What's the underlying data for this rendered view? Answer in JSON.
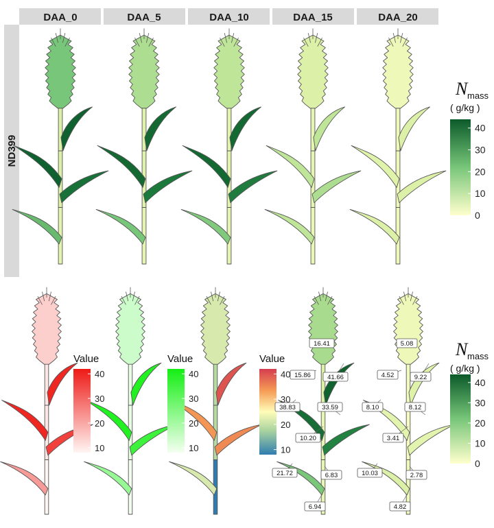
{
  "panels": [
    "DAA_0",
    "DAA_5",
    "DAA_10",
    "DAA_15",
    "DAA_20"
  ],
  "genotype": "ND399",
  "colors": {
    "n_low": "#ffffcc",
    "n_high": "#0b5a2a",
    "red_low": "#fff5f3",
    "red_high": "#ee1a16",
    "green_low": "#f4fff0",
    "green_high": "#14ef14",
    "spec_stops": [
      "#2f7db0",
      "#a9d39f",
      "#fffdb8",
      "#f59a55",
      "#d53e4f"
    ]
  },
  "legends": {
    "n_mass": {
      "title": "N",
      "subscript": "mass",
      "unit": "( g/kg )",
      "ticks": [
        0,
        10,
        20,
        30,
        40
      ],
      "range": [
        0,
        44
      ]
    },
    "value": {
      "title": "Value",
      "ticks": [
        10,
        20,
        30,
        40
      ],
      "range": [
        8,
        42
      ]
    }
  },
  "chart_data": [
    {
      "type": "heatmap",
      "description_row": "row 1",
      "organs": [
        "ear",
        "flag_leaf",
        "leaf2",
        "leaf3",
        "leaf4",
        "stem_upper",
        "stem_mid",
        "stem_lower"
      ],
      "n_mass_g_per_kg": {
        "DAA_0": {
          "ear": 22,
          "flag_leaf": 42,
          "leaf2": 42,
          "leaf3": 38,
          "leaf4": 24,
          "stem_upper": 10,
          "stem_mid": 10,
          "stem_lower": 8
        },
        "DAA_5": {
          "ear": 16,
          "flag_leaf": 40,
          "leaf2": 40,
          "leaf3": 36,
          "leaf4": 22,
          "stem_upper": 9,
          "stem_mid": 9,
          "stem_lower": 7
        },
        "DAA_10": {
          "ear": 14,
          "flag_leaf": 40,
          "leaf2": 40,
          "leaf3": 35,
          "leaf4": 21,
          "stem_upper": 8,
          "stem_mid": 8,
          "stem_lower": 7
        },
        "DAA_15": {
          "ear": 10,
          "flag_leaf": 14,
          "leaf2": 14,
          "leaf3": 16,
          "leaf4": 14,
          "stem_upper": 7,
          "stem_mid": 7,
          "stem_lower": 6
        },
        "DAA_20": {
          "ear": 5,
          "flag_leaf": 10,
          "leaf2": 9,
          "leaf3": 10,
          "leaf4": 10,
          "stem_upper": 5,
          "stem_mid": 5,
          "stem_lower": 5
        }
      }
    },
    {
      "type": "heatmap",
      "description_row": "row 2",
      "value_scale": {
        "DAA_0": {
          "ear": 14,
          "flag_leaf": 40,
          "leaf2": 40,
          "leaf3": 36,
          "leaf4": 22,
          "stem_upper": 10,
          "stem_mid": 10,
          "stem_lower": 8
        },
        "DAA_5": {
          "ear": 14,
          "flag_leaf": 40,
          "leaf2": 40,
          "leaf3": 36,
          "leaf4": 22,
          "stem_upper": 10,
          "stem_mid": 10,
          "stem_lower": 8
        },
        "DAA_10": {
          "ear": 21,
          "flag_leaf": 40,
          "leaf2": 34,
          "leaf3": 35,
          "leaf4": 21,
          "stem_upper": 18,
          "stem_mid": 18,
          "stem_lower": 8
        }
      },
      "n_mass_labelled": {
        "DAA_15": {
          "ear": 16.41,
          "flag_leaf": 41.66,
          "leaf2": 15.86,
          "leaf3": 38.83,
          "leaf4": 33.59,
          "internode": 10.2,
          "lower_leaf": 21.72,
          "lower_stem": 6.83,
          "base": 6.94
        },
        "DAA_20": {
          "ear": 5.08,
          "flag_leaf": 9.22,
          "leaf2": 4.52,
          "leaf3": 8.1,
          "leaf4": 8.12,
          "internode": 3.41,
          "lower_leaf": 10.03,
          "lower_stem": 2.78,
          "base": 4.82
        }
      }
    }
  ]
}
